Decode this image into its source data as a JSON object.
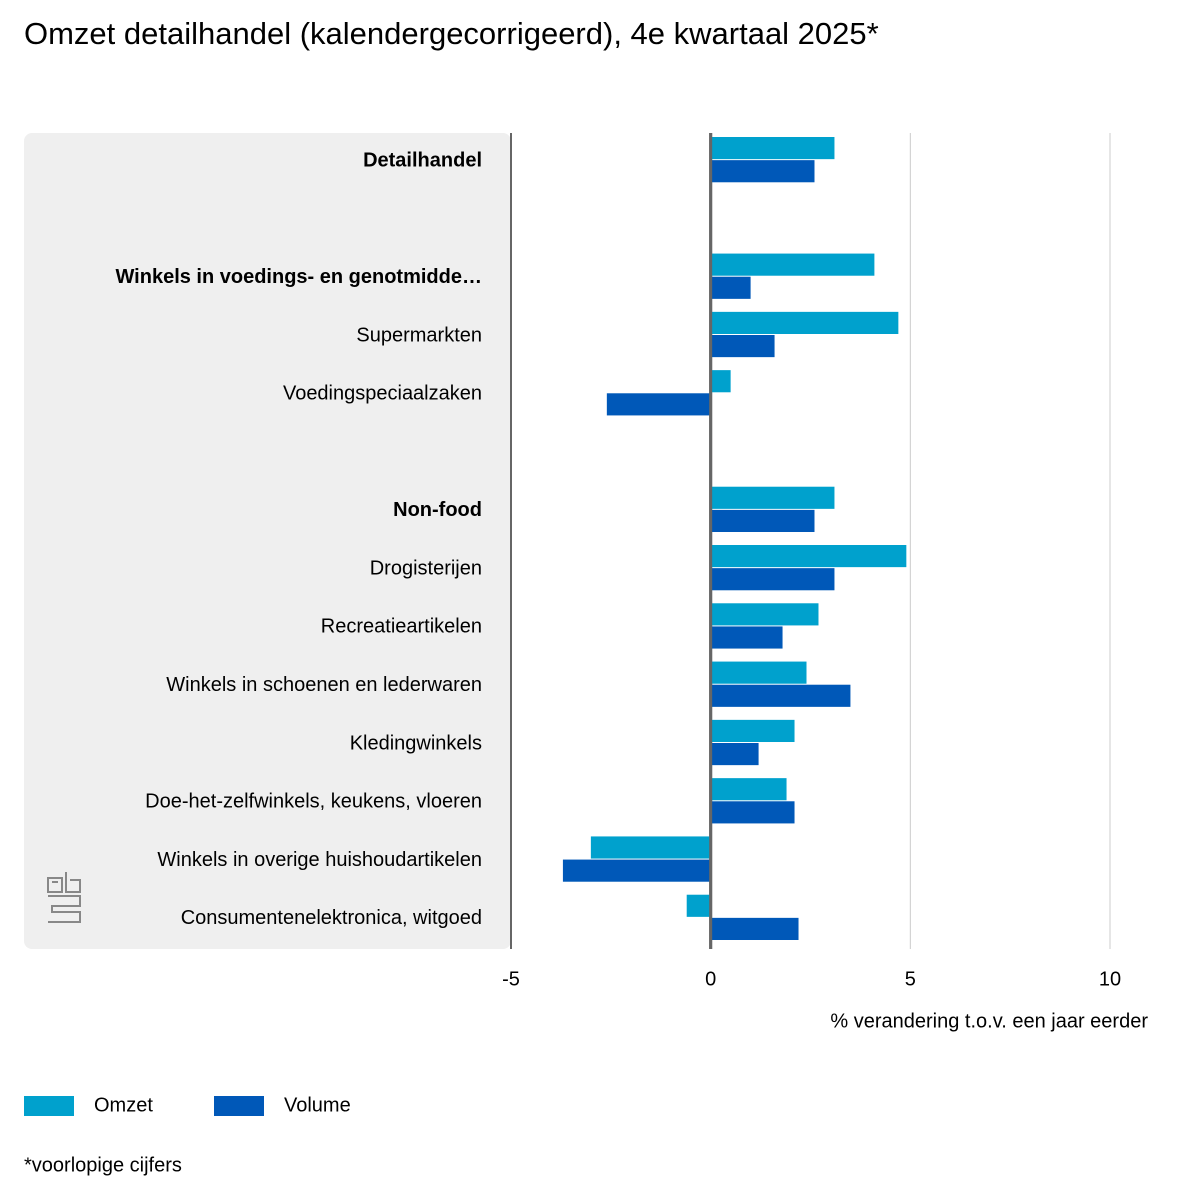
{
  "chart_data": {
    "type": "hbar",
    "title": "Omzet detailhandel (kalendergecorrigeerd), 4e kwartaal 2025*",
    "categories": [
      "Detailhandel",
      null,
      "Winkels in voedings- en genotmidde…",
      "Supermarkten",
      "Voedingspeciaalzaken",
      null,
      "Non-food",
      "Drogisterijen",
      "Recreatieartikelen",
      "Winkels in schoenen en lederwaren",
      "Kledingwinkels",
      "Doe-het-zelfwinkels, keukens, vloeren",
      "Winkels in overige huishoudartikelen",
      "Consumentenelektronica, witgoed"
    ],
    "series": [
      {
        "name": "Omzet",
        "color": "#00a1cd",
        "values": [
          3.1,
          null,
          4.1,
          4.7,
          0.5,
          null,
          3.1,
          4.9,
          2.7,
          2.4,
          2.1,
          1.9,
          -3.0,
          -0.6
        ]
      },
      {
        "name": "Volume",
        "color": "#0058b8",
        "values": [
          2.6,
          null,
          1.0,
          1.6,
          -2.6,
          null,
          2.6,
          3.1,
          1.8,
          3.5,
          1.2,
          2.1,
          -3.7,
          2.2
        ]
      }
    ],
    "xlim": [
      -5,
      10
    ],
    "xticks": [
      -5,
      0,
      5,
      10
    ],
    "grid": true,
    "x_label": "% verandering t.o.v. een jaar eerder",
    "footnote": "*voorlopige cijfers"
  }
}
